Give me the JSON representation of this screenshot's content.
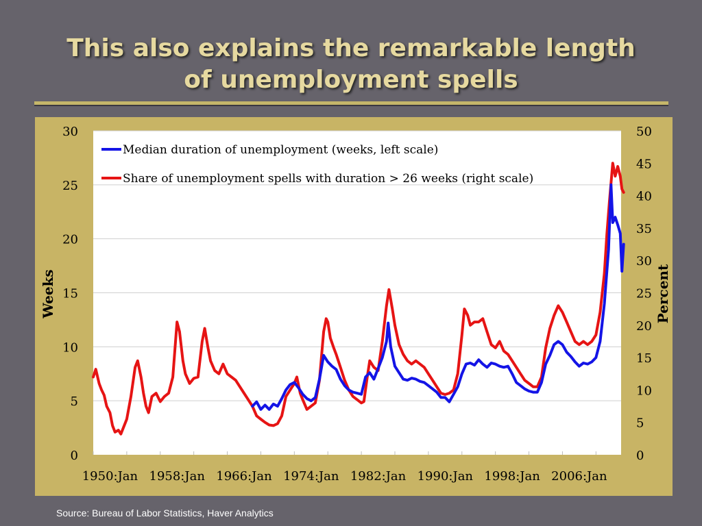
{
  "slide": {
    "title_line1": "This also explains the remarkable length",
    "title_line2": "of unemployment spells",
    "source": "Source: Bureau of Labor Statistics, Haver Analytics"
  },
  "colors": {
    "median": "#1414e6",
    "share": "#e61414",
    "accent": "#c8b465"
  },
  "chart_data": {
    "type": "line",
    "x_ticks": [
      "1950:Jan",
      "1958:Jan",
      "1966:Jan",
      "1974:Jan",
      "1982:Jan",
      "1990:Jan",
      "1998:Jan",
      "2006:Jan"
    ],
    "ylabel": "Weeks",
    "y2label": "Percent",
    "ylim": [
      0,
      30
    ],
    "y2lim": [
      0,
      50
    ],
    "y_ticks": [
      0,
      5,
      10,
      15,
      20,
      25,
      30
    ],
    "y2_ticks": [
      0,
      5,
      10,
      15,
      20,
      25,
      30,
      35,
      40,
      45,
      50
    ],
    "xlim": [
      1948,
      2011
    ],
    "grid": true,
    "legend_position": "top-left",
    "series": [
      {
        "name": "Median duration of unemployment (weeks, left scale)",
        "axis": "left",
        "points": [
          [
            1967.0,
            4.5
          ],
          [
            1967.5,
            4.9
          ],
          [
            1968.0,
            4.2
          ],
          [
            1968.5,
            4.6
          ],
          [
            1969.0,
            4.2
          ],
          [
            1969.5,
            4.7
          ],
          [
            1970.0,
            4.5
          ],
          [
            1970.5,
            5.2
          ],
          [
            1971.0,
            6.0
          ],
          [
            1971.5,
            6.5
          ],
          [
            1972.0,
            6.7
          ],
          [
            1972.5,
            6.2
          ],
          [
            1973.0,
            5.6
          ],
          [
            1973.5,
            5.2
          ],
          [
            1974.0,
            5.0
          ],
          [
            1974.5,
            5.3
          ],
          [
            1975.0,
            7.0
          ],
          [
            1975.5,
            9.2
          ],
          [
            1976.0,
            8.6
          ],
          [
            1976.5,
            8.2
          ],
          [
            1977.0,
            7.9
          ],
          [
            1977.5,
            7.0
          ],
          [
            1978.0,
            6.4
          ],
          [
            1978.5,
            6.0
          ],
          [
            1979.0,
            5.8
          ],
          [
            1979.5,
            5.7
          ],
          [
            1980.0,
            5.6
          ],
          [
            1980.5,
            7.2
          ],
          [
            1981.0,
            7.6
          ],
          [
            1981.5,
            7.0
          ],
          [
            1982.0,
            8.0
          ],
          [
            1982.5,
            9.0
          ],
          [
            1983.0,
            10.5
          ],
          [
            1983.2,
            12.2
          ],
          [
            1983.5,
            10.0
          ],
          [
            1984.0,
            8.2
          ],
          [
            1984.5,
            7.6
          ],
          [
            1985.0,
            7.0
          ],
          [
            1985.5,
            6.9
          ],
          [
            1986.0,
            7.1
          ],
          [
            1986.5,
            7.0
          ],
          [
            1987.0,
            6.8
          ],
          [
            1987.5,
            6.7
          ],
          [
            1988.0,
            6.4
          ],
          [
            1988.5,
            6.1
          ],
          [
            1989.0,
            5.8
          ],
          [
            1989.5,
            5.3
          ],
          [
            1990.0,
            5.3
          ],
          [
            1990.5,
            4.9
          ],
          [
            1991.0,
            5.6
          ],
          [
            1991.5,
            6.3
          ],
          [
            1992.0,
            7.5
          ],
          [
            1992.5,
            8.4
          ],
          [
            1993.0,
            8.5
          ],
          [
            1993.5,
            8.3
          ],
          [
            1994.0,
            8.8
          ],
          [
            1994.5,
            8.4
          ],
          [
            1995.0,
            8.1
          ],
          [
            1995.5,
            8.5
          ],
          [
            1996.0,
            8.4
          ],
          [
            1996.5,
            8.2
          ],
          [
            1997.0,
            8.1
          ],
          [
            1997.5,
            8.2
          ],
          [
            1998.0,
            7.5
          ],
          [
            1998.5,
            6.7
          ],
          [
            1999.0,
            6.4
          ],
          [
            1999.5,
            6.1
          ],
          [
            2000.0,
            5.9
          ],
          [
            2000.5,
            5.8
          ],
          [
            2001.0,
            5.8
          ],
          [
            2001.5,
            6.7
          ],
          [
            2002.0,
            8.4
          ],
          [
            2002.5,
            9.2
          ],
          [
            2003.0,
            10.2
          ],
          [
            2003.5,
            10.5
          ],
          [
            2004.0,
            10.2
          ],
          [
            2004.5,
            9.5
          ],
          [
            2005.0,
            9.1
          ],
          [
            2005.5,
            8.6
          ],
          [
            2006.0,
            8.2
          ],
          [
            2006.5,
            8.5
          ],
          [
            2007.0,
            8.4
          ],
          [
            2007.5,
            8.6
          ],
          [
            2008.0,
            9.0
          ],
          [
            2008.5,
            10.5
          ],
          [
            2009.0,
            14.0
          ],
          [
            2009.5,
            19.0
          ],
          [
            2009.8,
            25.0
          ],
          [
            2010.0,
            21.5
          ],
          [
            2010.3,
            22.0
          ],
          [
            2010.6,
            21.3
          ],
          [
            2010.9,
            20.5
          ],
          [
            2011.1,
            17.0
          ],
          [
            2011.3,
            19.5
          ]
        ]
      },
      {
        "name": "Share of unemployment spells with duration > 26 weeks (right scale)",
        "axis": "right",
        "points": [
          [
            1948.0,
            12.0
          ],
          [
            1948.3,
            13.2
          ],
          [
            1948.7,
            11.0
          ],
          [
            1949.0,
            10.0
          ],
          [
            1949.3,
            9.2
          ],
          [
            1949.6,
            7.5
          ],
          [
            1950.0,
            6.5
          ],
          [
            1950.3,
            4.5
          ],
          [
            1950.6,
            3.5
          ],
          [
            1951.0,
            3.8
          ],
          [
            1951.3,
            3.2
          ],
          [
            1951.7,
            4.5
          ],
          [
            1952.0,
            5.5
          ],
          [
            1952.5,
            9.0
          ],
          [
            1953.0,
            13.5
          ],
          [
            1953.3,
            14.5
          ],
          [
            1953.7,
            12.0
          ],
          [
            1954.0,
            9.5
          ],
          [
            1954.3,
            7.5
          ],
          [
            1954.6,
            6.5
          ],
          [
            1955.0,
            9.0
          ],
          [
            1955.5,
            9.5
          ],
          [
            1956.0,
            8.2
          ],
          [
            1956.5,
            9.0
          ],
          [
            1957.0,
            9.5
          ],
          [
            1957.5,
            12.0
          ],
          [
            1958.0,
            20.5
          ],
          [
            1958.3,
            19.0
          ],
          [
            1958.7,
            14.5
          ],
          [
            1959.0,
            12.5
          ],
          [
            1959.5,
            11.0
          ],
          [
            1960.0,
            11.8
          ],
          [
            1960.5,
            12.0
          ],
          [
            1961.0,
            17.5
          ],
          [
            1961.3,
            19.5
          ],
          [
            1961.7,
            16.5
          ],
          [
            1962.0,
            14.5
          ],
          [
            1962.5,
            13.0
          ],
          [
            1963.0,
            12.5
          ],
          [
            1963.5,
            14.0
          ],
          [
            1964.0,
            12.5
          ],
          [
            1964.5,
            12.0
          ],
          [
            1965.0,
            11.5
          ],
          [
            1965.5,
            10.5
          ],
          [
            1966.0,
            9.5
          ],
          [
            1966.5,
            8.5
          ],
          [
            1967.0,
            7.5
          ],
          [
            1967.5,
            6.0
          ],
          [
            1968.0,
            5.5
          ],
          [
            1968.5,
            5.0
          ],
          [
            1969.0,
            4.6
          ],
          [
            1969.5,
            4.5
          ],
          [
            1970.0,
            4.8
          ],
          [
            1970.5,
            6.0
          ],
          [
            1971.0,
            9.0
          ],
          [
            1971.5,
            10.0
          ],
          [
            1972.0,
            11.0
          ],
          [
            1972.3,
            12.0
          ],
          [
            1972.7,
            9.5
          ],
          [
            1973.0,
            8.5
          ],
          [
            1973.5,
            7.0
          ],
          [
            1974.0,
            7.5
          ],
          [
            1974.5,
            8.0
          ],
          [
            1975.0,
            11.5
          ],
          [
            1975.5,
            19.0
          ],
          [
            1975.8,
            21.0
          ],
          [
            1976.0,
            20.5
          ],
          [
            1976.3,
            18.0
          ],
          [
            1976.7,
            16.5
          ],
          [
            1977.0,
            15.5
          ],
          [
            1977.5,
            13.5
          ],
          [
            1978.0,
            11.5
          ],
          [
            1978.5,
            10.0
          ],
          [
            1979.0,
            9.0
          ],
          [
            1979.5,
            8.5
          ],
          [
            1980.0,
            8.0
          ],
          [
            1980.3,
            8.2
          ],
          [
            1980.7,
            12.0
          ],
          [
            1981.0,
            14.5
          ],
          [
            1981.5,
            13.5
          ],
          [
            1982.0,
            13.0
          ],
          [
            1982.5,
            17.5
          ],
          [
            1983.0,
            23.0
          ],
          [
            1983.3,
            25.5
          ],
          [
            1983.7,
            22.5
          ],
          [
            1984.0,
            20.0
          ],
          [
            1984.5,
            17.0
          ],
          [
            1985.0,
            15.5
          ],
          [
            1985.5,
            14.5
          ],
          [
            1986.0,
            14.0
          ],
          [
            1986.5,
            14.5
          ],
          [
            1987.0,
            14.0
          ],
          [
            1987.5,
            13.5
          ],
          [
            1988.0,
            12.5
          ],
          [
            1988.5,
            11.5
          ],
          [
            1989.0,
            10.5
          ],
          [
            1989.5,
            9.5
          ],
          [
            1990.0,
            9.3
          ],
          [
            1990.5,
            9.5
          ],
          [
            1991.0,
            10.0
          ],
          [
            1991.5,
            12.5
          ],
          [
            1992.0,
            18.5
          ],
          [
            1992.3,
            22.5
          ],
          [
            1992.7,
            21.5
          ],
          [
            1993.0,
            20.0
          ],
          [
            1993.5,
            20.5
          ],
          [
            1994.0,
            20.5
          ],
          [
            1994.5,
            21.0
          ],
          [
            1995.0,
            19.0
          ],
          [
            1995.5,
            17.0
          ],
          [
            1996.0,
            16.5
          ],
          [
            1996.5,
            17.5
          ],
          [
            1997.0,
            16.0
          ],
          [
            1997.5,
            15.5
          ],
          [
            1998.0,
            14.5
          ],
          [
            1998.5,
            13.5
          ],
          [
            1999.0,
            12.5
          ],
          [
            1999.5,
            11.5
          ],
          [
            2000.0,
            11.0
          ],
          [
            2000.5,
            10.5
          ],
          [
            2001.0,
            10.5
          ],
          [
            2001.5,
            12.0
          ],
          [
            2002.0,
            16.5
          ],
          [
            2002.5,
            19.5
          ],
          [
            2003.0,
            21.5
          ],
          [
            2003.5,
            23.0
          ],
          [
            2004.0,
            22.0
          ],
          [
            2004.5,
            20.5
          ],
          [
            2005.0,
            19.0
          ],
          [
            2005.5,
            17.5
          ],
          [
            2006.0,
            17.0
          ],
          [
            2006.5,
            17.5
          ],
          [
            2007.0,
            17.0
          ],
          [
            2007.5,
            17.5
          ],
          [
            2008.0,
            18.5
          ],
          [
            2008.5,
            22.0
          ],
          [
            2009.0,
            28.0
          ],
          [
            2009.3,
            34.0
          ],
          [
            2009.6,
            39.0
          ],
          [
            2010.0,
            45.0
          ],
          [
            2010.3,
            43.0
          ],
          [
            2010.6,
            44.5
          ],
          [
            2010.9,
            43.0
          ],
          [
            2011.1,
            41.0
          ],
          [
            2011.3,
            40.5
          ]
        ]
      }
    ]
  }
}
